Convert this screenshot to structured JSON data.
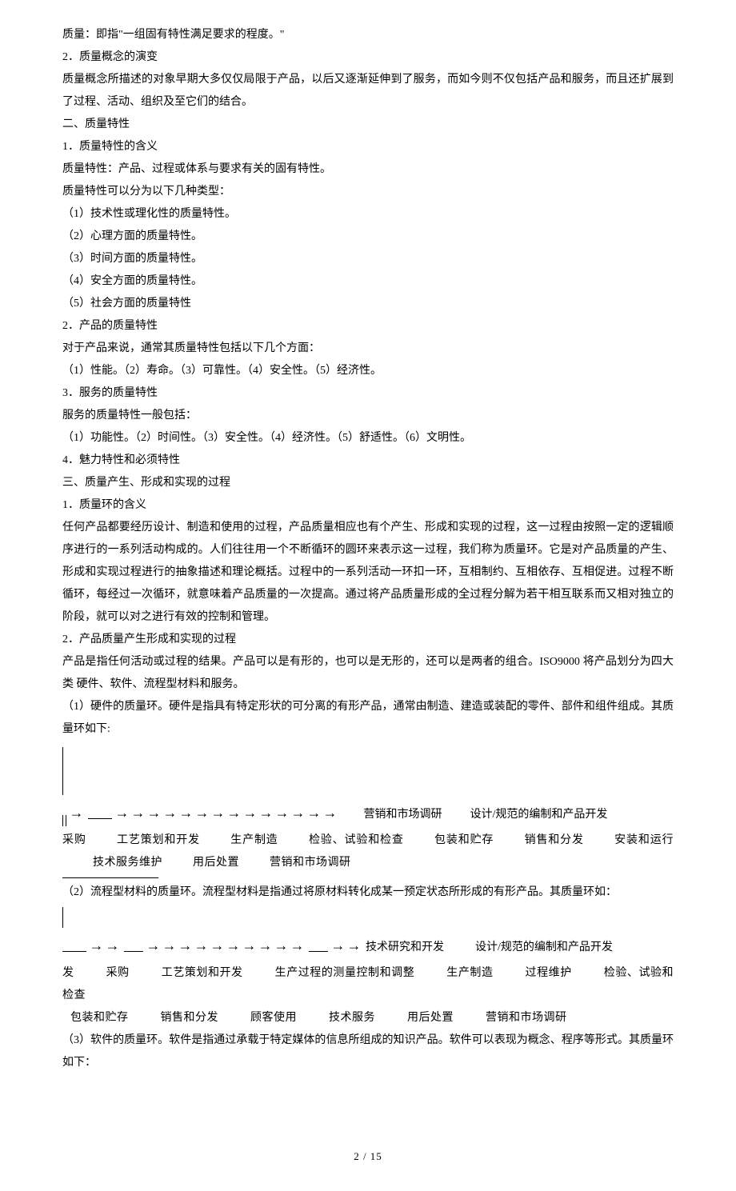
{
  "body": {
    "p1": "质量：即指\"一组固有特性满足要求的程度。\"",
    "p2": "2．质量概念的演变",
    "p3": "质量概念所描述的对象早期大多仅仅局限于产品，以后又逐渐延伸到了服务，而如今则不仅包括产品和服务，而且还扩展到了过程、活动、组织及至它们的结合。",
    "p4": "二、质量特性",
    "p5": "1．质量特性的含义",
    "p6": "质量特性：产品、过程或体系与要求有关的固有特性。",
    "p7": "质量特性可以分为以下几种类型：",
    "p8": "（1）技术性或理化性的质量特性。",
    "p9": "（2）心理方面的质量特性。",
    "p10": "（3）时间方面的质量特性。",
    "p11": "（4）安全方面的质量特性。",
    "p12": "（5）社会方面的质量特性",
    "p13": "2．产品的质量特性",
    "p14": "对于产品来说，通常其质量特性包括以下几个方面：",
    "p15": "（1）性能。（2）寿命。（3）可靠性。（4）安全性。（5）经济性。",
    "p16": "3．服务的质量特性",
    "p17": "服务的质量特性一般包括：",
    "p18": "（1）功能性。（2）时间性。（3）安全性。（4）经济性。（5）舒适性。（6）文明性。",
    "p19": "4．魅力特性和必须特性",
    "p20": "三、质量产生、形成和实现的过程",
    "p21": "1．质量环的含义",
    "p22": "任何产品都要经历设计、制造和使用的过程，产品质量相应也有个产生、形成和实现的过程，这一过程由按照一定的逻辑顺序进行的一系列活动构成的。人们往往用一个不断循环的圆环来表示这一过程，我们称为质量环。它是对产品质量的产生、形成和实现过程进行的抽象描述和理论概括。过程中的一系列活动一环扣一环，互相制约、互相依存、互相促进。过程不断循环，每经过一次循环，就意味着产品质量的一次提高。通过将产品质量形成的全过程分解为若干相互联系而又相对独立的阶段，就可以对之进行有效的控制和管理。",
    "p23": "2．产品质量产生形成和实现的过程",
    "p24": "产品是指任何活动或过程的结果。产品可以是有形的，也可以是无形的，还可以是两者的组合。ISO9000 将产品划分为四大类 硬件、软件、流程型材料和服务。",
    "p25": "（1）硬件的质量环。硬件是指具有特定形状的可分离的有形产品，通常由制造、建造或装配的零件、部件和组件组成。其质量环如下:"
  },
  "flow1": {
    "trail1": "营销和市场调研",
    "trail2": "设计/规范的编制和产品开发",
    "line2_items": [
      "采购",
      "工艺策划和开发",
      "生产制造",
      "检验、试验和检查",
      "包装和贮存",
      "销售和分发",
      "安装和运行",
      "技术服务维护",
      "用后处置",
      "营销和市场调研"
    ]
  },
  "mid": {
    "p26": "（2）流程型材料的质量环。流程型材料是指通过将原材料转化成某一预定状态所形成的有形产品。其质量环如：",
    "trail1": "技术研究和开发",
    "trail2": "设计/规范的编制和产品开发",
    "line2_items": [
      "采购",
      "工艺策划和开发",
      "生产过程的测量控制和调整",
      "生产制造",
      "过程维护",
      "检验、试验和检查"
    ],
    "line3_items": [
      "包装和贮存",
      "销售和分发",
      "顾客使用",
      "技术服务",
      "用后处置",
      "营销和市场调研"
    ],
    "p27": "（3）软件的质量环。软件是指通过承载于特定媒体的信息所组成的知识产品。软件可以表现为概念、程序等形式。其质量环如下："
  },
  "footer": {
    "text": "2 / 15"
  }
}
